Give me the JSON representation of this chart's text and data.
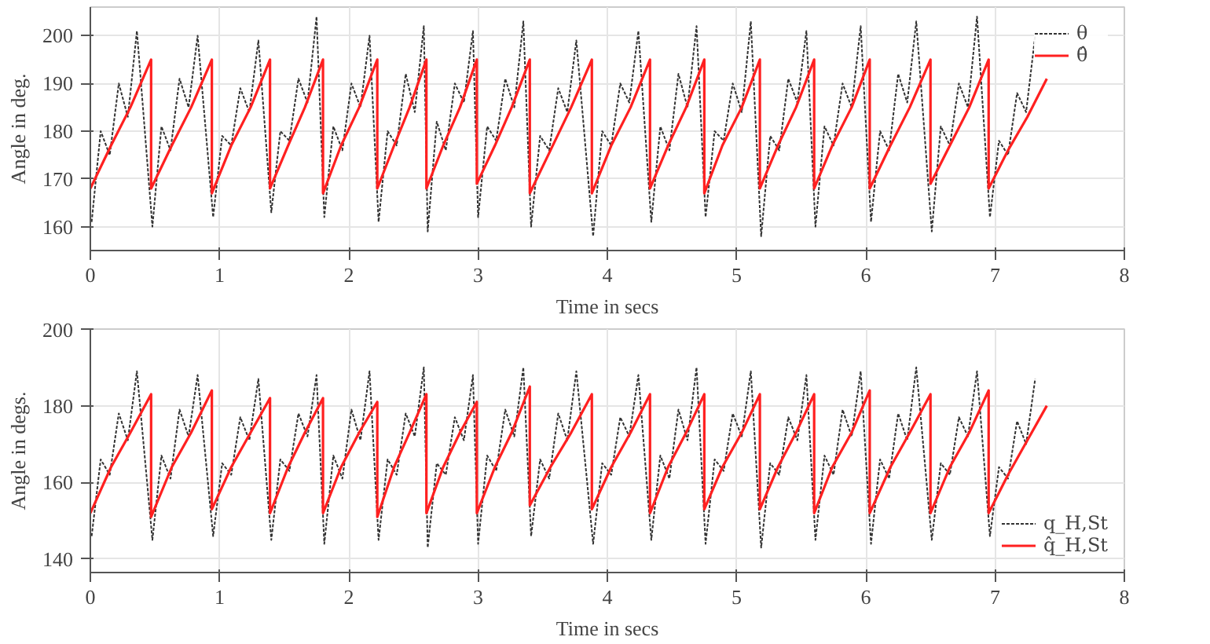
{
  "chart_data": [
    {
      "type": "line",
      "xlabel": "Time in secs",
      "ylabel": "Angle in deg.",
      "xlim": [
        0,
        8
      ],
      "xticks": [
        0,
        1,
        2,
        3,
        4,
        5,
        6,
        7,
        8
      ],
      "ylim": [
        155,
        206
      ],
      "yticks": [
        160,
        170,
        180,
        190,
        200
      ],
      "grid": true,
      "legend": "top right",
      "marker": "none",
      "series": [
        {
          "name": "θ",
          "color": "#333333",
          "line_style": "dotted",
          "x": [
            0.01,
            0.08,
            0.15,
            0.22,
            0.29,
            0.36,
            0.48,
            0.55,
            0.62,
            0.69,
            0.76,
            0.83,
            0.95,
            1.02,
            1.09,
            1.16,
            1.23,
            1.3,
            1.4,
            1.47,
            1.54,
            1.61,
            1.68,
            1.75,
            1.81,
            1.88,
            1.95,
            2.02,
            2.09,
            2.16,
            2.23,
            2.3,
            2.37,
            2.44,
            2.51,
            2.58,
            2.61,
            2.68,
            2.75,
            2.82,
            2.89,
            2.96,
            3.0,
            3.07,
            3.14,
            3.21,
            3.28,
            3.35,
            3.41,
            3.48,
            3.55,
            3.62,
            3.69,
            3.76,
            3.89,
            3.96,
            4.03,
            4.1,
            4.17,
            4.24,
            4.34,
            4.41,
            4.48,
            4.55,
            4.62,
            4.69,
            4.76,
            4.83,
            4.9,
            4.97,
            5.04,
            5.11,
            5.19,
            5.26,
            5.33,
            5.4,
            5.47,
            5.54,
            5.61,
            5.68,
            5.75,
            5.82,
            5.89,
            5.96,
            6.04,
            6.11,
            6.18,
            6.25,
            6.32,
            6.39,
            6.51,
            6.58,
            6.65,
            6.72,
            6.79,
            6.86,
            6.96,
            7.03,
            7.1,
            7.17,
            7.24,
            7.31
          ],
          "values": [
            161,
            180,
            175,
            190,
            183,
            201,
            160,
            181,
            176,
            191,
            185,
            200,
            162,
            179,
            177,
            189,
            184,
            199,
            163,
            180,
            178,
            191,
            186,
            204,
            162,
            181,
            176,
            190,
            185,
            200,
            161,
            180,
            177,
            192,
            184,
            202,
            159,
            182,
            176,
            190,
            186,
            201,
            162,
            181,
            178,
            191,
            185,
            203,
            160,
            179,
            176,
            189,
            184,
            199,
            158,
            180,
            177,
            190,
            186,
            201,
            161,
            181,
            176,
            192,
            185,
            202,
            162,
            180,
            178,
            190,
            184,
            203,
            158,
            179,
            176,
            191,
            186,
            201,
            160,
            181,
            177,
            190,
            185,
            202,
            161,
            180,
            176,
            192,
            186,
            203,
            159,
            181,
            177,
            190,
            185,
            204,
            162,
            178,
            175,
            188,
            184,
            200
          ]
        },
        {
          "name": "θ̂",
          "color": "#ff2020",
          "line_style": "solid",
          "x": [
            0,
            0.16,
            0.31,
            0.47,
            0.47,
            0.63,
            0.78,
            0.94,
            0.94,
            1.09,
            1.24,
            1.39,
            1.39,
            1.53,
            1.66,
            1.8,
            1.8,
            1.94,
            2.08,
            2.22,
            2.22,
            2.35,
            2.47,
            2.6,
            2.6,
            2.73,
            2.86,
            2.99,
            2.99,
            3.13,
            3.26,
            3.4,
            3.4,
            3.56,
            3.72,
            3.88,
            3.88,
            4.03,
            4.18,
            4.33,
            4.33,
            4.47,
            4.61,
            4.75,
            4.75,
            4.89,
            5.04,
            5.18,
            5.18,
            5.32,
            5.46,
            5.6,
            5.6,
            5.74,
            5.89,
            6.03,
            6.03,
            6.19,
            6.34,
            6.5,
            6.5,
            6.65,
            6.8,
            6.95,
            6.95,
            7.1,
            7.25,
            7.4
          ],
          "values": [
            168,
            177,
            185,
            195,
            168,
            177,
            185,
            195,
            167,
            177,
            185,
            195,
            168,
            177,
            185,
            195,
            167,
            177,
            185,
            195,
            168,
            177,
            185,
            195,
            168,
            177,
            185,
            195,
            169,
            177,
            185,
            195,
            167,
            176,
            185,
            195,
            167,
            177,
            185,
            195,
            168,
            177,
            185,
            195,
            167,
            177,
            185,
            195,
            168,
            177,
            185,
            195,
            168,
            177,
            185,
            195,
            168,
            177,
            185,
            195,
            169,
            177,
            185,
            195,
            168,
            176,
            183,
            191
          ]
        }
      ]
    },
    {
      "type": "line",
      "xlabel": "Time in secs",
      "ylabel": "Angle in degs.",
      "xlim": [
        0,
        8
      ],
      "xticks": [
        0,
        1,
        2,
        3,
        4,
        5,
        6,
        7,
        8
      ],
      "ylim": [
        136.5,
        200
      ],
      "yticks": [
        140,
        160,
        180,
        200
      ],
      "grid": true,
      "legend": "bottom right",
      "marker": "none",
      "series": [
        {
          "name": "q_H,St",
          "color": "#333333",
          "line_style": "dotted",
          "x": [
            0.01,
            0.08,
            0.15,
            0.22,
            0.29,
            0.36,
            0.48,
            0.55,
            0.62,
            0.69,
            0.76,
            0.83,
            0.95,
            1.02,
            1.09,
            1.16,
            1.23,
            1.3,
            1.4,
            1.47,
            1.54,
            1.61,
            1.68,
            1.75,
            1.81,
            1.88,
            1.95,
            2.02,
            2.09,
            2.16,
            2.23,
            2.3,
            2.37,
            2.44,
            2.51,
            2.58,
            2.61,
            2.68,
            2.75,
            2.82,
            2.89,
            2.96,
            3.0,
            3.07,
            3.14,
            3.21,
            3.28,
            3.35,
            3.41,
            3.48,
            3.55,
            3.62,
            3.69,
            3.76,
            3.89,
            3.96,
            4.03,
            4.1,
            4.17,
            4.24,
            4.34,
            4.41,
            4.48,
            4.55,
            4.62,
            4.69,
            4.76,
            4.83,
            4.9,
            4.97,
            5.04,
            5.11,
            5.19,
            5.26,
            5.33,
            5.4,
            5.47,
            5.54,
            5.61,
            5.68,
            5.75,
            5.82,
            5.89,
            5.96,
            6.04,
            6.11,
            6.18,
            6.25,
            6.32,
            6.39,
            6.51,
            6.58,
            6.65,
            6.72,
            6.79,
            6.86,
            6.96,
            7.03,
            7.1,
            7.17,
            7.24,
            7.31
          ],
          "values": [
            146,
            166,
            162,
            178,
            171,
            189,
            145,
            167,
            161,
            179,
            172,
            188,
            146,
            165,
            162,
            177,
            171,
            187,
            145,
            166,
            163,
            178,
            172,
            188,
            144,
            167,
            161,
            179,
            171,
            189,
            145,
            166,
            162,
            178,
            172,
            190,
            143,
            165,
            162,
            177,
            171,
            188,
            144,
            167,
            163,
            179,
            172,
            190,
            146,
            166,
            161,
            178,
            171,
            189,
            144,
            165,
            162,
            177,
            172,
            188,
            145,
            167,
            161,
            179,
            171,
            190,
            144,
            166,
            163,
            178,
            172,
            189,
            143,
            165,
            162,
            177,
            171,
            188,
            145,
            167,
            162,
            179,
            172,
            189,
            144,
            166,
            161,
            178,
            171,
            190,
            145,
            165,
            162,
            177,
            172,
            189,
            146,
            164,
            161,
            176,
            170,
            187
          ]
        },
        {
          "name": "q̂_H,St",
          "color": "#ff2020",
          "line_style": "solid",
          "x": [
            0,
            0.16,
            0.31,
            0.47,
            0.47,
            0.63,
            0.78,
            0.94,
            0.94,
            1.09,
            1.24,
            1.39,
            1.39,
            1.53,
            1.66,
            1.8,
            1.8,
            1.94,
            2.08,
            2.22,
            2.22,
            2.35,
            2.47,
            2.6,
            2.6,
            2.73,
            2.86,
            2.99,
            2.99,
            3.13,
            3.26,
            3.4,
            3.4,
            3.56,
            3.72,
            3.88,
            3.88,
            4.03,
            4.18,
            4.33,
            4.33,
            4.47,
            4.61,
            4.75,
            4.75,
            4.89,
            5.04,
            5.18,
            5.18,
            5.32,
            5.46,
            5.6,
            5.6,
            5.74,
            5.89,
            6.03,
            6.03,
            6.19,
            6.34,
            6.5,
            6.5,
            6.65,
            6.8,
            6.95,
            6.95,
            7.1,
            7.25,
            7.4
          ],
          "values": [
            152,
            164,
            173,
            183,
            151,
            164,
            173,
            184,
            153,
            164,
            173,
            182,
            152,
            164,
            173,
            182,
            152,
            164,
            173,
            181,
            151,
            164,
            173,
            183,
            152,
            164,
            173,
            181,
            152,
            164,
            173,
            185,
            154,
            164,
            173,
            183,
            153,
            164,
            173,
            183,
            152,
            164,
            173,
            183,
            153,
            164,
            173,
            183,
            153,
            164,
            173,
            183,
            152,
            164,
            173,
            184,
            152,
            164,
            173,
            183,
            152,
            164,
            173,
            184,
            152,
            162,
            171,
            180
          ]
        }
      ]
    }
  ]
}
